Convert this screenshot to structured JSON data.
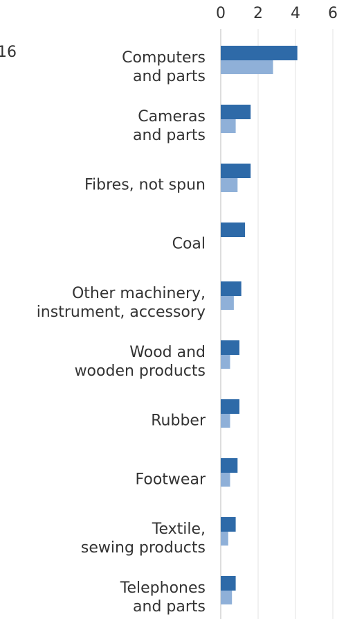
{
  "chart_data": {
    "type": "bar",
    "orientation": "horizontal",
    "annotation": "16",
    "categories": [
      "Computers\nand parts",
      "Cameras\nand parts",
      "Fibres, not spun",
      "Coal",
      "Other machinery,\ninstrument, accessory",
      "Wood and\nwooden products",
      "Rubber",
      "Footwear",
      "Textile,\nsewing products",
      "Telephones\nand parts"
    ],
    "series": [
      {
        "color": "#2e6aa8",
        "values": [
          4.1,
          1.6,
          1.6,
          1.3,
          1.1,
          1.0,
          1.0,
          0.9,
          0.8,
          0.8
        ]
      },
      {
        "color": "#8fb0d8",
        "values": [
          2.8,
          0.8,
          0.9,
          null,
          0.7,
          0.5,
          0.5,
          0.5,
          0.4,
          0.6
        ]
      }
    ],
    "xlim": [
      0,
      6
    ],
    "xticks": [
      0,
      2,
      4,
      6
    ],
    "grid": true
  }
}
